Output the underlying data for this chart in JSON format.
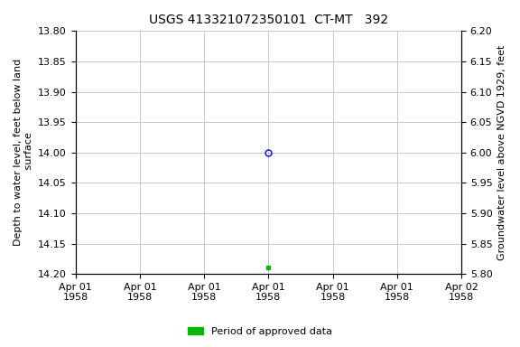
{
  "title": "USGS 413321072350101  CT-MT   392",
  "ylabel_left": "Depth to water level, feet below land\n surface",
  "ylabel_right": "Groundwater level above NGVD 1929, feet",
  "ylim_left": [
    13.8,
    14.2
  ],
  "ylim_right": [
    6.2,
    5.8
  ],
  "xlim": [
    0.0,
    6.0
  ],
  "xtick_positions": [
    0,
    1,
    2,
    3,
    4,
    5,
    6
  ],
  "xtick_labels": [
    "Apr 01\n1958",
    "Apr 01\n1958",
    "Apr 01\n1958",
    "Apr 01\n1958",
    "Apr 01\n1958",
    "Apr 01\n1958",
    "Apr 02\n1958"
  ],
  "yticks_left": [
    13.8,
    13.85,
    13.9,
    13.95,
    14.0,
    14.05,
    14.1,
    14.15,
    14.2
  ],
  "yticks_right": [
    6.2,
    6.15,
    6.1,
    6.05,
    6.0,
    5.95,
    5.9,
    5.85,
    5.8
  ],
  "data_point_blue_x": 3.0,
  "data_point_blue_y": 14.0,
  "data_point_green_x": 3.0,
  "data_point_green_y": 14.19,
  "bg_color": "#ffffff",
  "grid_color": "#c8c8c8",
  "title_fontsize": 10,
  "axis_label_fontsize": 8,
  "tick_fontsize": 8,
  "legend_label": "Period of approved data",
  "legend_color": "#00bb00"
}
